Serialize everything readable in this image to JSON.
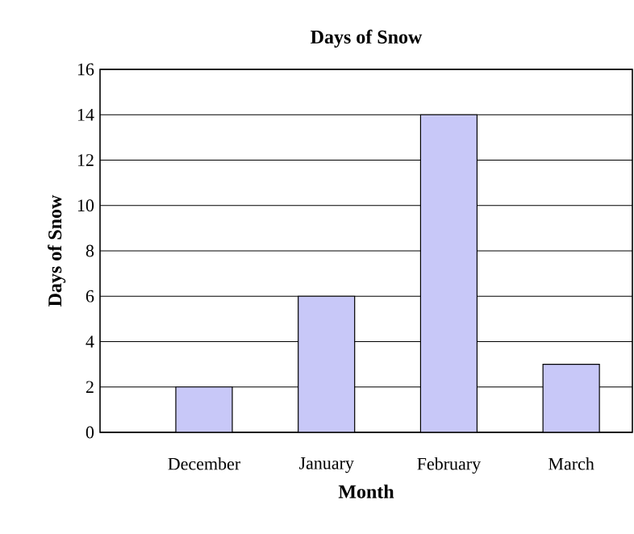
{
  "chart_data": {
    "type": "bar",
    "title": "Days of Snow",
    "xlabel": "Month",
    "ylabel": "Days of Snow",
    "categories": [
      "December",
      "January",
      "February",
      "March"
    ],
    "values": [
      2,
      6,
      14,
      3
    ],
    "color": "#c8c8f8",
    "ylim": [
      0,
      16
    ],
    "yticks": [
      0,
      2,
      4,
      6,
      8,
      10,
      12,
      14,
      16
    ],
    "grid": "y"
  }
}
